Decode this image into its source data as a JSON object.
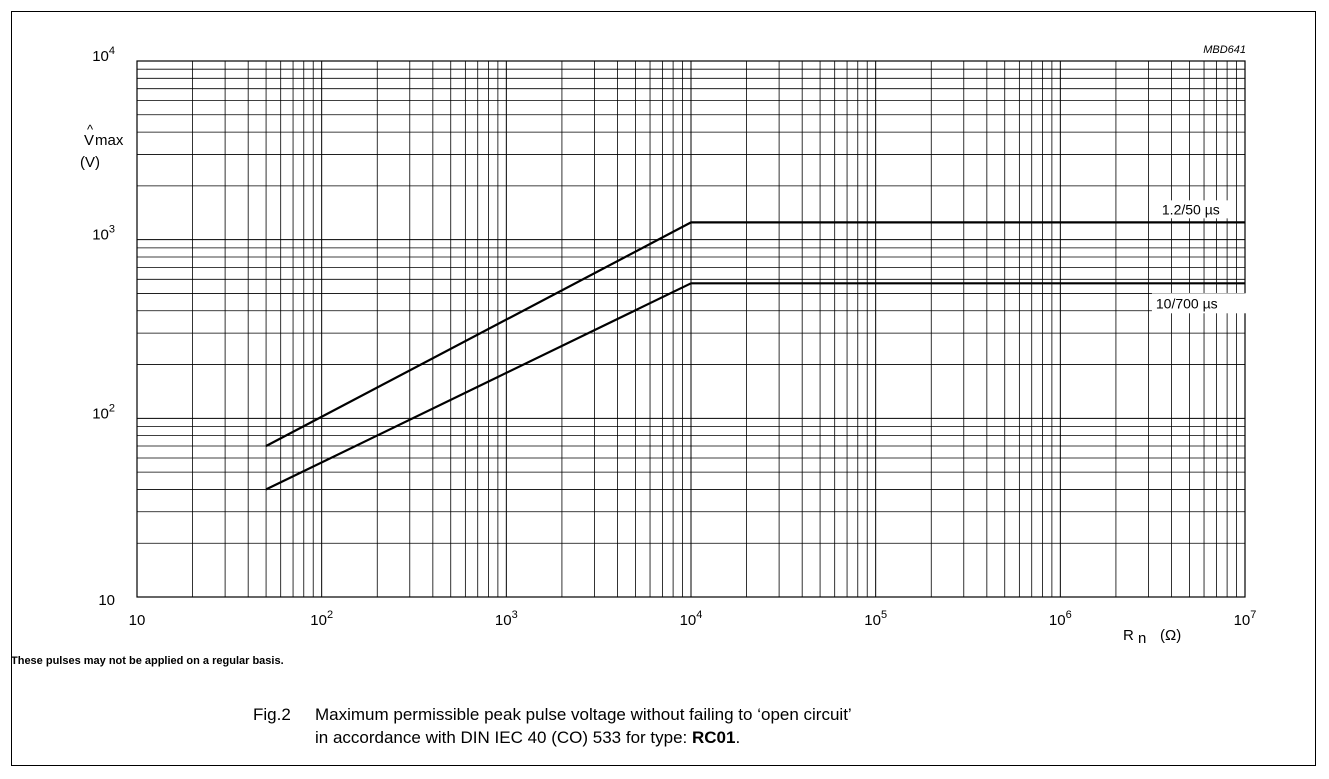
{
  "chart_data": {
    "type": "line",
    "code": "MBD641",
    "x_axis": {
      "scale": "log",
      "range": [
        10,
        10000000
      ],
      "label_main": "R",
      "label_sub": "n",
      "label_unit": "(Ω)"
    },
    "y_axis": {
      "scale": "log",
      "range": [
        10,
        10000
      ],
      "label_main": "V",
      "label_accent": "^",
      "label_sub": "max",
      "label_unit": "(V)"
    },
    "x_ticks": [
      {
        "value": 10,
        "base": "10",
        "exp": ""
      },
      {
        "value": 100,
        "base": "10",
        "exp": "2"
      },
      {
        "value": 1000,
        "base": "10",
        "exp": "3"
      },
      {
        "value": 10000,
        "base": "10",
        "exp": "4"
      },
      {
        "value": 100000,
        "base": "10",
        "exp": "5"
      },
      {
        "value": 1000000,
        "base": "10",
        "exp": "6"
      },
      {
        "value": 10000000,
        "base": "10",
        "exp": "7"
      }
    ],
    "y_ticks": [
      {
        "value": 10,
        "base": "10",
        "exp": ""
      },
      {
        "value": 100,
        "base": "10",
        "exp": "2"
      },
      {
        "value": 1000,
        "base": "10",
        "exp": "3"
      },
      {
        "value": 10000,
        "base": "10",
        "exp": "4"
      }
    ],
    "grid": true,
    "series": [
      {
        "name": "1.2/50 µs",
        "points": [
          [
            50,
            70
          ],
          [
            10000,
            1250
          ],
          [
            10000000,
            1250
          ]
        ]
      },
      {
        "name": "10/700 µs",
        "points": [
          [
            50,
            40
          ],
          [
            10000,
            570
          ],
          [
            10000000,
            570
          ]
        ]
      }
    ]
  },
  "note": "These pulses may not be applied on a regular basis.",
  "caption": {
    "fig": "Fig.2",
    "line1": "Maximum permissible peak pulse voltage without failing to ‘open circuit’",
    "line2_prefix": "in accordance with DIN IEC 40 (CO) 533 for type: ",
    "line2_type": "RC01",
    "line2_suffix": "."
  }
}
